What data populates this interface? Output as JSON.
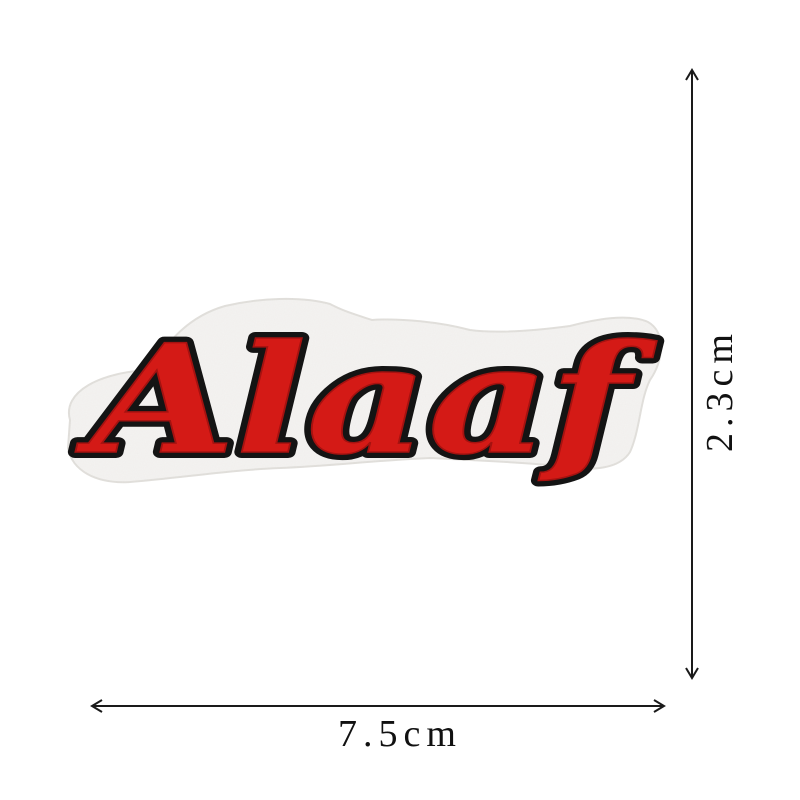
{
  "patch": {
    "text": "Alaaf",
    "colors": {
      "fill": "#d41a16",
      "outline": "#141414",
      "backing": "#f4f3f1"
    }
  },
  "dimensions": {
    "width_label": "7.5cm",
    "height_label": "2.3cm",
    "line_color": "#1a1a1a"
  }
}
